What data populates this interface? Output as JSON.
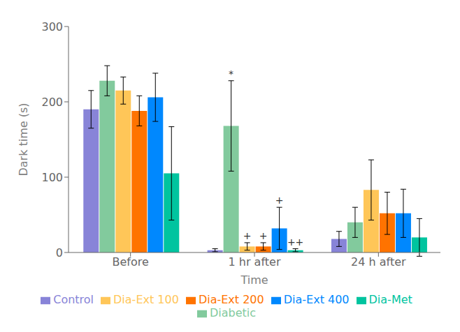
{
  "chart_data": {
    "type": "bar",
    "categories": [
      "Before",
      "1 hr after",
      "24 h after"
    ],
    "series": [
      {
        "name": "Control",
        "color": "#8884d8",
        "values": [
          190,
          3,
          18
        ],
        "errors": [
          25,
          2,
          10
        ]
      },
      {
        "name": "Diabetic",
        "color": "#82ca9d",
        "values": [
          228,
          168,
          40
        ],
        "errors": [
          20,
          60,
          20
        ]
      },
      {
        "name": "Dia-Ext 100",
        "color": "#ffc658",
        "values": [
          215,
          8,
          83
        ],
        "errors": [
          18,
          5,
          40
        ]
      },
      {
        "name": "Dia-Ext 200",
        "color": "#ff7300",
        "values": [
          188,
          8,
          52
        ],
        "errors": [
          20,
          5,
          28
        ]
      },
      {
        "name": "Dia-Ext 400",
        "color": "#0088fe",
        "values": [
          206,
          32,
          52
        ],
        "errors": [
          32,
          28,
          32
        ]
      },
      {
        "name": "Dia-Met",
        "color": "#00c49f",
        "values": [
          105,
          3,
          20
        ],
        "errors": [
          62,
          2,
          25
        ]
      }
    ],
    "xlabel": "Time",
    "ylabel": "Dark time (s)",
    "ylim": [
      0,
      300
    ],
    "yticks": [
      0,
      100,
      200,
      300
    ],
    "grid": false,
    "legend": "bottom",
    "annotations": [
      {
        "text": "*",
        "category": "1 hr after",
        "series": "Diabetic"
      },
      {
        "text": "+",
        "category": "1 hr after",
        "series": "Dia-Ext 100"
      },
      {
        "text": "+",
        "category": "1 hr after",
        "series": "Dia-Ext 200"
      },
      {
        "text": "+",
        "category": "1 hr after",
        "series": "Dia-Ext 400"
      },
      {
        "text": "++",
        "category": "1 hr after",
        "series": "Dia-Met"
      }
    ]
  }
}
